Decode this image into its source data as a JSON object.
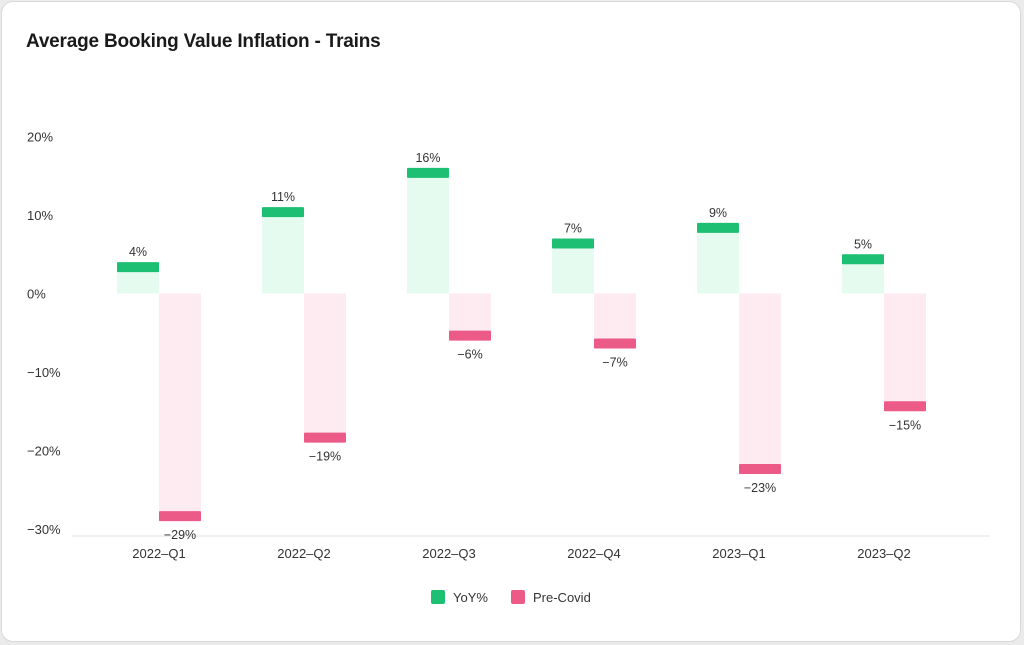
{
  "title": "Average Booking Value Inflation - Trains",
  "chart_data": {
    "type": "bar",
    "title": "Average Booking Value Inflation - Trains",
    "categories": [
      "2022–Q1",
      "2022–Q2",
      "2022–Q3",
      "2022–Q4",
      "2023–Q1",
      "2023–Q2"
    ],
    "series": [
      {
        "name": "YoY%",
        "values": [
          4,
          11,
          16,
          7,
          9,
          5
        ],
        "labels": [
          "4%",
          "11%",
          "16%",
          "7%",
          "9%",
          "5%"
        ],
        "color": "#1dbf73",
        "light_color": "#e6fbf0"
      },
      {
        "name": "Pre-Covid",
        "values": [
          -29,
          -19,
          -6,
          -7,
          -23,
          -15
        ],
        "labels": [
          "−29%",
          "−19%",
          "−6%",
          "−7%",
          "−23%",
          "−15%"
        ],
        "color": "#ec5a88",
        "light_color": "#fdebf1"
      }
    ],
    "y_ticks": [
      20,
      10,
      0,
      -10,
      -20,
      -30
    ],
    "y_tick_labels": [
      "20%",
      "10%",
      "0%",
      "−10%",
      "−20%",
      "−30%"
    ],
    "ylim": [
      -30,
      20
    ],
    "grid": false,
    "legend_position": "bottom-center"
  }
}
